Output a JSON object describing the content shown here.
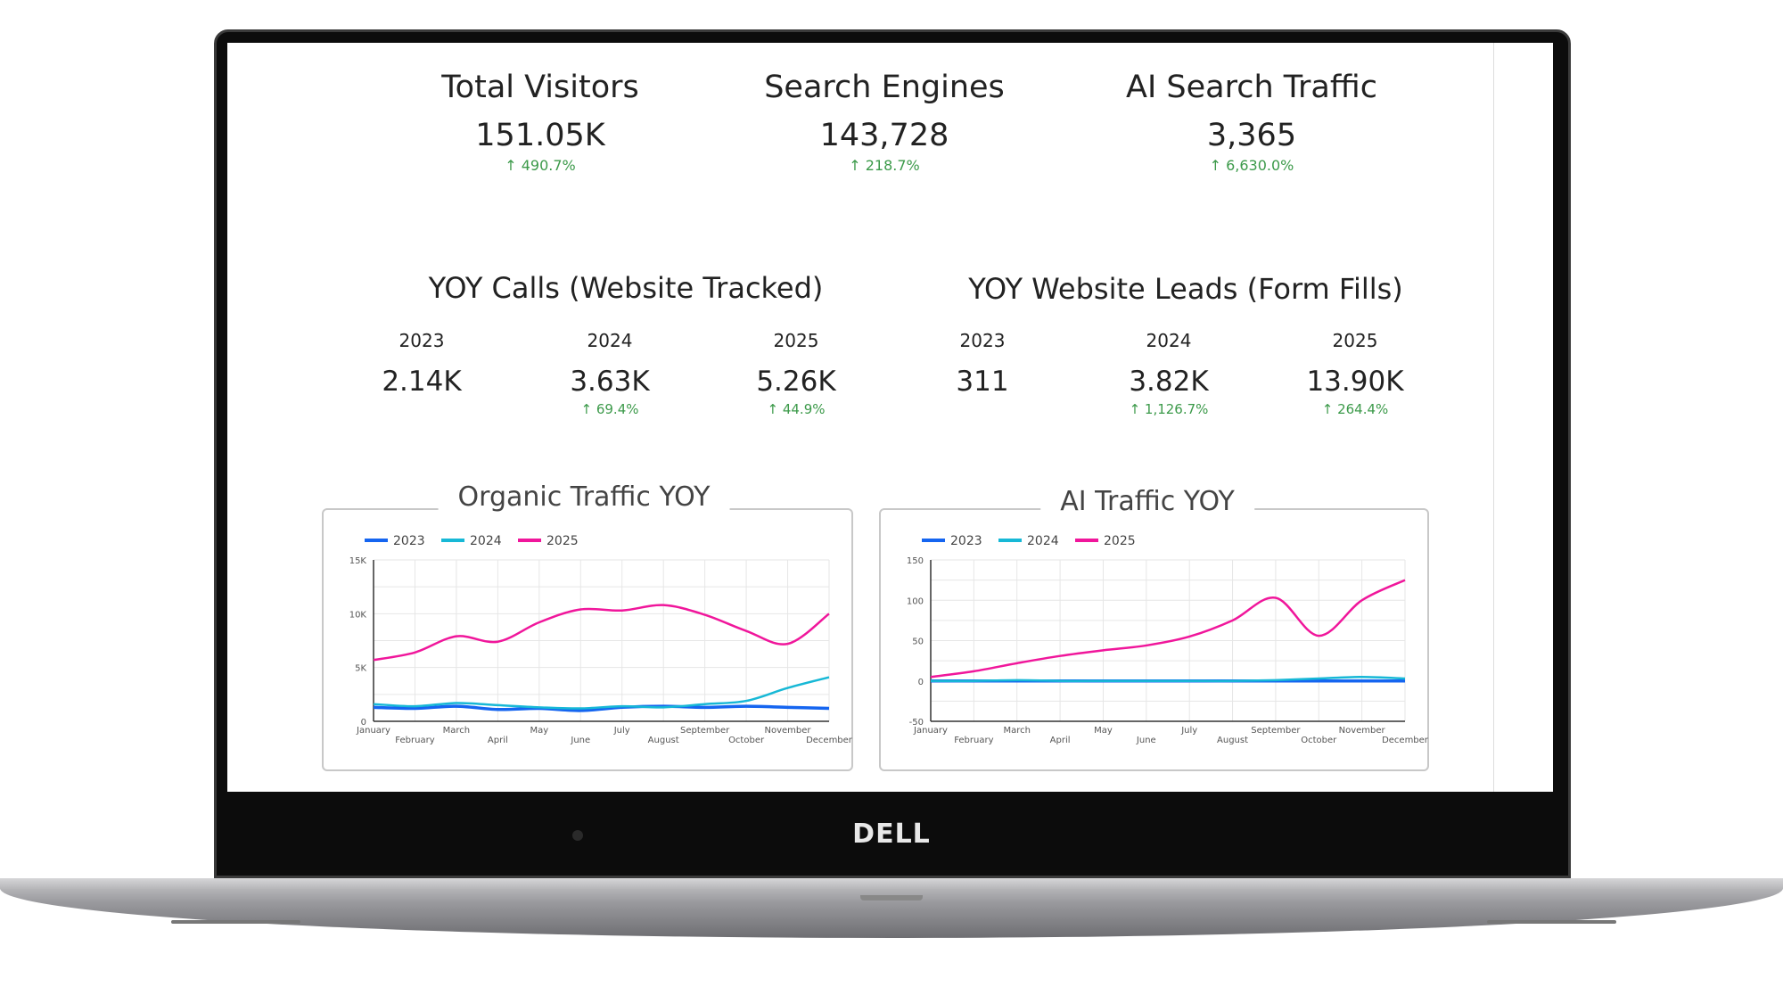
{
  "device": {
    "brand_logo": "DELL"
  },
  "kpis": [
    {
      "title": "Total Visitors",
      "value": "151.05K",
      "delta": "490.7%",
      "trend": "up"
    },
    {
      "title": "Search Engines",
      "value": "143,728",
      "delta": "218.7%",
      "trend": "up"
    },
    {
      "title": "AI Search Traffic",
      "value": "3,365",
      "delta": "6,630.0%",
      "trend": "up"
    }
  ],
  "calls": {
    "title": "YOY Calls (Website Tracked)",
    "years": [
      {
        "year": "2023",
        "value": "2.14K",
        "delta": ""
      },
      {
        "year": "2024",
        "value": "3.63K",
        "delta": "69.4%"
      },
      {
        "year": "2025",
        "value": "5.26K",
        "delta": "44.9%"
      }
    ]
  },
  "leads": {
    "title": "YOY Website Leads (Form Fills)",
    "years": [
      {
        "year": "2023",
        "value": "311",
        "delta": ""
      },
      {
        "year": "2024",
        "value": "3.82K",
        "delta": "1,126.7%"
      },
      {
        "year": "2025",
        "value": "13.90K",
        "delta": "264.4%"
      }
    ]
  },
  "colors": {
    "positive": "#3c9a4a",
    "s2023": "#1565f0",
    "s2024": "#17b8d6",
    "s2025": "#f0169b"
  },
  "chart_data": [
    {
      "type": "line",
      "title": "Organic Traffic YOY",
      "legend": "top-left",
      "grid": true,
      "categories": [
        "January",
        "February",
        "March",
        "April",
        "May",
        "June",
        "July",
        "August",
        "September",
        "October",
        "November",
        "December"
      ],
      "ylim": [
        0,
        15000
      ],
      "yticks": [
        0,
        5000,
        10000,
        15000
      ],
      "ytick_labels": [
        "0",
        "5K",
        "10K",
        "15K"
      ],
      "series": [
        {
          "name": "2023",
          "values": [
            1300,
            1200,
            1400,
            1100,
            1200,
            1000,
            1300,
            1400,
            1300,
            1400,
            1300,
            1200
          ]
        },
        {
          "name": "2024",
          "values": [
            1600,
            1400,
            1700,
            1500,
            1300,
            1200,
            1400,
            1300,
            1600,
            1900,
            3100,
            4100
          ]
        },
        {
          "name": "2025",
          "values": [
            5700,
            6400,
            7900,
            7400,
            9200,
            10400,
            10300,
            10800,
            9900,
            8400,
            7200,
            10000
          ]
        }
      ]
    },
    {
      "type": "line",
      "title": "AI Traffic YOY",
      "legend": "top-left",
      "grid": true,
      "categories": [
        "January",
        "February",
        "March",
        "April",
        "May",
        "June",
        "July",
        "August",
        "September",
        "October",
        "November",
        "December"
      ],
      "ylim": [
        -50,
        150
      ],
      "yticks": [
        -50,
        0,
        50,
        100,
        150
      ],
      "ytick_labels": [
        "-50",
        "0",
        "50",
        "100",
        "150"
      ],
      "series": [
        {
          "name": "2023",
          "values": [
            0,
            0,
            0,
            0,
            0,
            0,
            0,
            0,
            0,
            0,
            0,
            0
          ]
        },
        {
          "name": "2024",
          "values": [
            0,
            0,
            1,
            0,
            0,
            0,
            0,
            0,
            1,
            3,
            5,
            3
          ]
        },
        {
          "name": "2025",
          "values": [
            5,
            12,
            22,
            31,
            38,
            44,
            55,
            75,
            103,
            56,
            100,
            125
          ]
        }
      ]
    }
  ]
}
